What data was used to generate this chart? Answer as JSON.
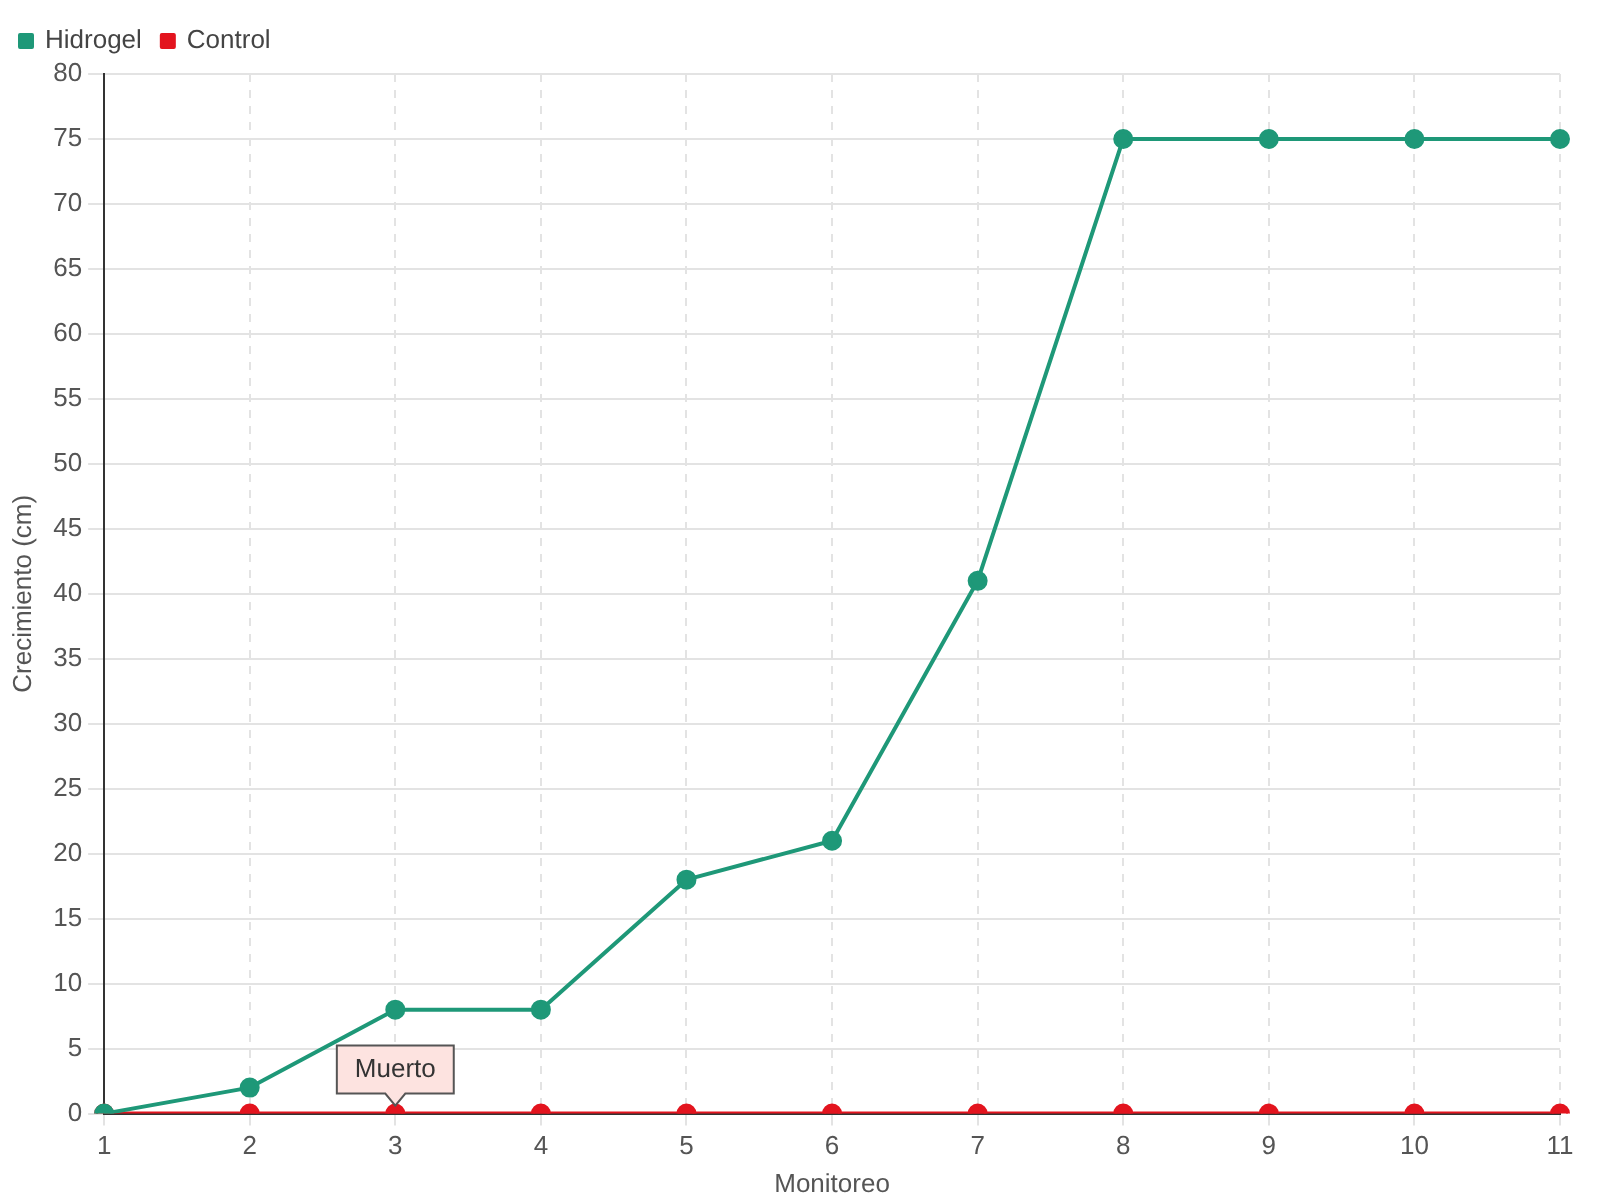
{
  "chart_data": {
    "type": "line",
    "xlabel": "Monitoreo",
    "ylabel": "Crecimiento (cm)",
    "categories": [
      "1",
      "2",
      "3",
      "4",
      "5",
      "6",
      "7",
      "8",
      "9",
      "10",
      "11"
    ],
    "series": [
      {
        "name": "Hidrogel",
        "color": "#1e9878",
        "values": [
          0,
          2,
          8,
          8,
          18,
          21,
          41,
          75,
          75,
          75,
          75
        ]
      },
      {
        "name": "Control",
        "color": "#e3141e",
        "values": [
          0,
          0,
          0,
          0,
          0,
          0,
          0,
          0,
          0,
          0,
          0
        ]
      }
    ],
    "ylim": [
      0,
      80
    ],
    "yticks": [
      0,
      5,
      10,
      15,
      20,
      25,
      30,
      35,
      40,
      45,
      50,
      55,
      60,
      65,
      70,
      75,
      80
    ],
    "grid": true,
    "legend": "top left",
    "marker": "circle",
    "annotations": [
      {
        "text": "Muerto",
        "x": "3",
        "y": 0
      }
    ]
  }
}
